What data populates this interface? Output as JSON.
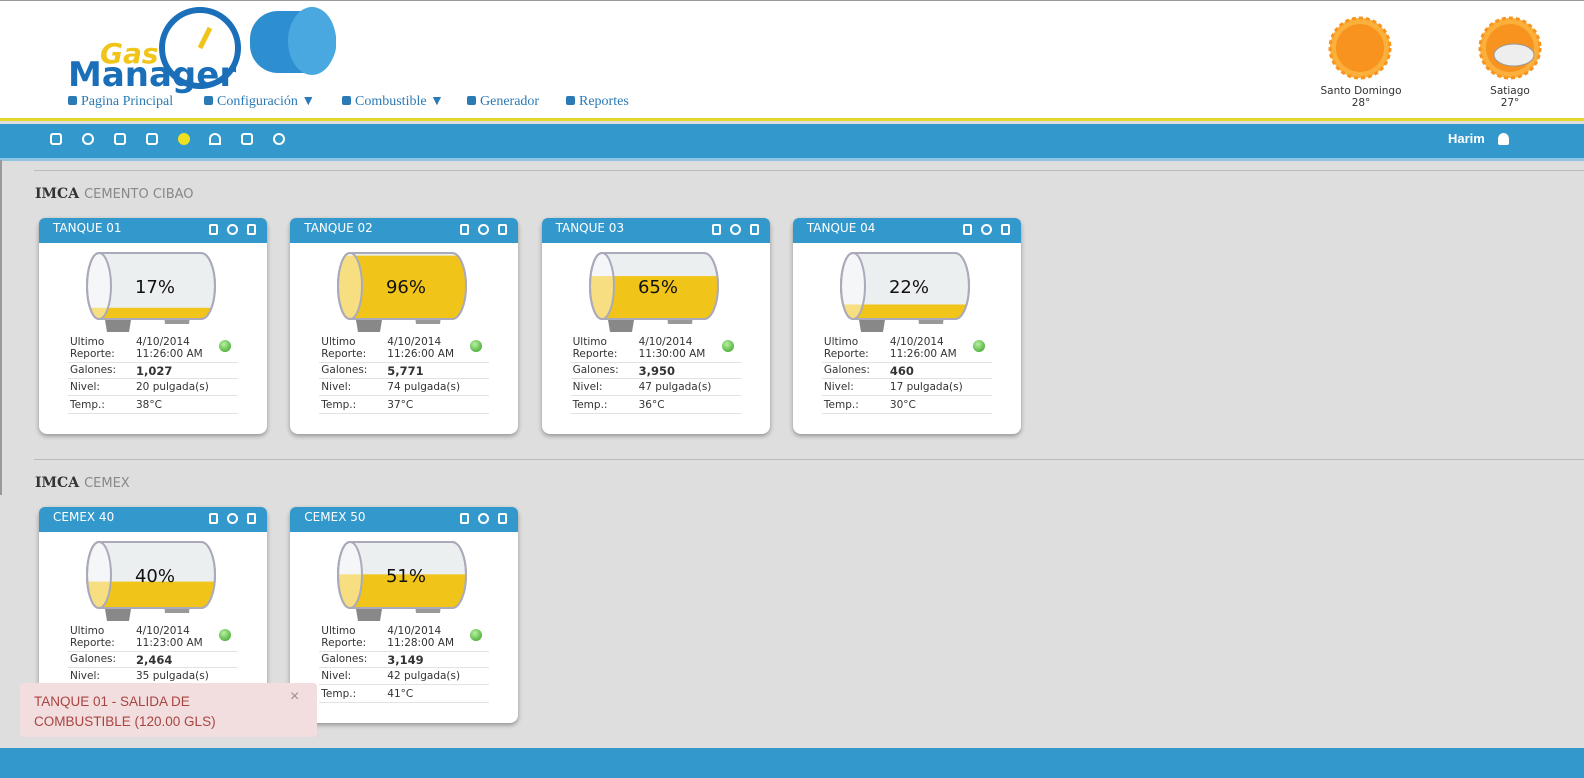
{
  "header": {
    "logo": {
      "line1": "Gas",
      "line2": "Manager"
    },
    "nav": [
      "Pagina Principal",
      "Configuración ▼",
      "Combustible ▼",
      "Generador",
      "Reportes"
    ],
    "weather": [
      {
        "city": "Santo Domingo",
        "temp": "28°"
      },
      {
        "city": "Satiago",
        "temp": "27°"
      }
    ]
  },
  "toolbar": {
    "user": "Harim"
  },
  "labels": {
    "last1": "Ultimo",
    "last2": "Reporte:",
    "gallons": "Galones:",
    "level": "Nivel:",
    "temp": "Temp.:"
  },
  "groups": [
    {
      "company": "IMCA",
      "site": "CEMENTO CIBAO",
      "tanks": [
        {
          "name": "TANQUE 01",
          "percent": 17,
          "percent_label": "17%",
          "date": "4/10/2014",
          "time": "11:26:00 AM",
          "gallons": "1,027",
          "level": "20 pulgada(s)",
          "temp": "38°C"
        },
        {
          "name": "TANQUE 02",
          "percent": 96,
          "percent_label": "96%",
          "date": "4/10/2014",
          "time": "11:26:00 AM",
          "gallons": "5,771",
          "level": "74 pulgada(s)",
          "temp": "37°C"
        },
        {
          "name": "TANQUE 03",
          "percent": 65,
          "percent_label": "65%",
          "date": "4/10/2014",
          "time": "11:30:00 AM",
          "gallons": "3,950",
          "level": "47 pulgada(s)",
          "temp": "36°C"
        },
        {
          "name": "TANQUE 04",
          "percent": 22,
          "percent_label": "22%",
          "date": "4/10/2014",
          "time": "11:26:00 AM",
          "gallons": "460",
          "level": "17 pulgada(s)",
          "temp": "30°C"
        }
      ]
    },
    {
      "company": "IMCA",
      "site": "CEMEX",
      "tanks": [
        {
          "name": "CEMEX 40",
          "percent": 40,
          "percent_label": "40%",
          "date": "4/10/2014",
          "time": "11:23:00 AM",
          "gallons": "2,464",
          "level": "35 pulgada(s)"
        },
        {
          "name": "CEMEX 50",
          "percent": 51,
          "percent_label": "51%",
          "date": "4/10/2014",
          "time": "11:28:00 AM",
          "gallons": "3,149",
          "level": "42 pulgada(s)",
          "temp": "41°C"
        }
      ]
    }
  ],
  "alert": {
    "text": "TANQUE 01 - SALIDA DE COMBUSTIBLE (120.00 GLS)",
    "close": "×"
  }
}
